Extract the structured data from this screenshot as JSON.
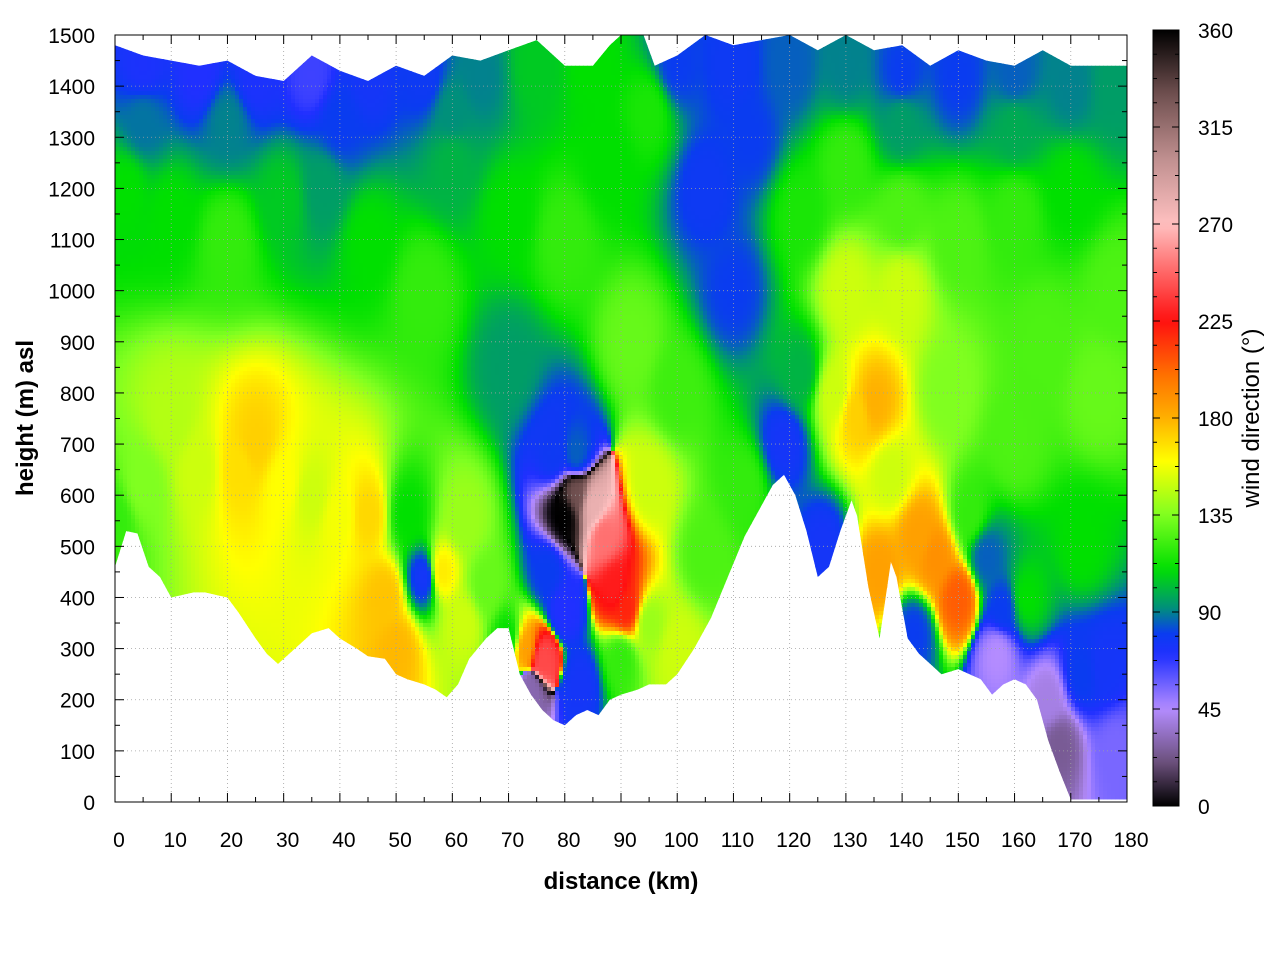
{
  "chart_data": {
    "type": "heatmap",
    "title": "",
    "xlabel": "distance (km)",
    "ylabel": "height (m) asl",
    "colorbar_label": "wind direction (°)",
    "xlim": [
      0,
      180
    ],
    "ylim": [
      0,
      1500
    ],
    "clim": [
      0,
      360
    ],
    "x_ticks": [
      0,
      10,
      20,
      30,
      40,
      50,
      60,
      70,
      80,
      90,
      100,
      110,
      120,
      130,
      140,
      150,
      160,
      170,
      180
    ],
    "y_ticks": [
      0,
      100,
      200,
      300,
      400,
      500,
      600,
      700,
      800,
      900,
      1000,
      1100,
      1200,
      1300,
      1400,
      1500
    ],
    "colorbar_ticks": [
      0,
      45,
      90,
      135,
      180,
      225,
      270,
      315,
      360
    ],
    "grid": true,
    "colormap": [
      {
        "v": 0,
        "c": "#000000"
      },
      {
        "v": 20,
        "c": "#6a4f7a"
      },
      {
        "v": 45,
        "c": "#b48cff"
      },
      {
        "v": 70,
        "c": "#2030ff"
      },
      {
        "v": 80,
        "c": "#0a3cf0"
      },
      {
        "v": 92,
        "c": "#00907a"
      },
      {
        "v": 110,
        "c": "#00e000"
      },
      {
        "v": 135,
        "c": "#80ff20"
      },
      {
        "v": 160,
        "c": "#ffff00"
      },
      {
        "v": 180,
        "c": "#ffb000"
      },
      {
        "v": 200,
        "c": "#ff7000"
      },
      {
        "v": 225,
        "c": "#ff1010"
      },
      {
        "v": 250,
        "c": "#ff7070"
      },
      {
        "v": 270,
        "c": "#ffc0c0"
      },
      {
        "v": 300,
        "c": "#c09090"
      },
      {
        "v": 330,
        "c": "#705050"
      },
      {
        "v": 360,
        "c": "#000000"
      }
    ],
    "terrain_profile": {
      "x": [
        0,
        2,
        4,
        6,
        8,
        10,
        12,
        14,
        16,
        20,
        22,
        25,
        27,
        29,
        30,
        32,
        35,
        38,
        40,
        43,
        45,
        48,
        50,
        52,
        55,
        57,
        59,
        61,
        63,
        66,
        68,
        70,
        72,
        74,
        76,
        78,
        80,
        82,
        84,
        86,
        88,
        90,
        93,
        95,
        98,
        100,
        103,
        106,
        109,
        112,
        115,
        117,
        119,
        121,
        123,
        125,
        127,
        129,
        131,
        132,
        134,
        136,
        138,
        139,
        141,
        143,
        145,
        147,
        150,
        152,
        154,
        156,
        158,
        160,
        162,
        164,
        166,
        168,
        170,
        172,
        174,
        176,
        178,
        180
      ],
      "height_m": [
        460,
        530,
        525,
        460,
        440,
        400,
        405,
        410,
        410,
        400,
        370,
        320,
        290,
        270,
        280,
        300,
        330,
        340,
        320,
        300,
        285,
        280,
        250,
        240,
        230,
        220,
        205,
        230,
        280,
        320,
        340,
        340,
        250,
        210,
        180,
        160,
        150,
        170,
        180,
        170,
        200,
        210,
        220,
        230,
        230,
        250,
        300,
        360,
        440,
        520,
        580,
        620,
        640,
        600,
        530,
        440,
        460,
        530,
        590,
        560,
        420,
        320,
        470,
        440,
        320,
        290,
        270,
        250,
        260,
        250,
        240,
        210,
        230,
        240,
        230,
        200,
        120,
        60,
        5,
        5,
        5,
        5,
        5,
        5
      ]
    },
    "top_edge": {
      "x": [
        0,
        5,
        10,
        15,
        20,
        25,
        30,
        35,
        40,
        45,
        50,
        55,
        60,
        65,
        70,
        75,
        80,
        85,
        88,
        90,
        92,
        94,
        96,
        100,
        105,
        110,
        115,
        120,
        125,
        130,
        135,
        140,
        145,
        150,
        155,
        160,
        165,
        170,
        175,
        180
      ],
      "height_m": [
        1480,
        1460,
        1450,
        1440,
        1450,
        1420,
        1410,
        1460,
        1430,
        1410,
        1440,
        1420,
        1460,
        1450,
        1470,
        1490,
        1440,
        1440,
        1480,
        1500,
        1500,
        1500,
        1440,
        1460,
        1500,
        1480,
        1490,
        1500,
        1470,
        1500,
        1470,
        1480,
        1440,
        1470,
        1450,
        1440,
        1470,
        1440,
        1440,
        1440
      ]
    },
    "features": [
      {
        "x": 0,
        "h": 550,
        "dir": 120
      },
      {
        "x": 5,
        "h": 620,
        "dir": 135
      },
      {
        "x": 10,
        "h": 750,
        "dir": 145
      },
      {
        "x": 15,
        "h": 650,
        "dir": 150
      },
      {
        "x": 22,
        "h": 650,
        "dir": 168
      },
      {
        "x": 25,
        "h": 700,
        "dir": 172
      },
      {
        "x": 30,
        "h": 620,
        "dir": 160
      },
      {
        "x": 35,
        "h": 600,
        "dir": 150
      },
      {
        "x": 40,
        "h": 560,
        "dir": 158
      },
      {
        "x": 45,
        "h": 560,
        "dir": 170
      },
      {
        "x": 48,
        "h": 400,
        "dir": 175
      },
      {
        "x": 50,
        "h": 300,
        "dir": 178
      },
      {
        "x": 52,
        "h": 560,
        "dir": 110
      },
      {
        "x": 55,
        "h": 440,
        "dir": 75
      },
      {
        "x": 58,
        "h": 450,
        "dir": 165
      },
      {
        "x": 62,
        "h": 550,
        "dir": 140
      },
      {
        "x": 62,
        "h": 350,
        "dir": 150
      },
      {
        "x": 66,
        "h": 420,
        "dir": 130
      },
      {
        "x": 70,
        "h": 320,
        "dir": 110
      },
      {
        "x": 73,
        "h": 300,
        "dir": 185
      },
      {
        "x": 76,
        "h": 280,
        "dir": 240
      },
      {
        "x": 74,
        "h": 220,
        "dir": 30
      },
      {
        "x": 77,
        "h": 450,
        "dir": 80
      },
      {
        "x": 70,
        "h": 850,
        "dir": 95
      },
      {
        "x": 78,
        "h": 680,
        "dir": 78
      },
      {
        "x": 82,
        "h": 680,
        "dir": 85
      },
      {
        "x": 80,
        "h": 560,
        "dir": 360
      },
      {
        "x": 82,
        "h": 600,
        "dir": 330
      },
      {
        "x": 85,
        "h": 580,
        "dir": 280
      },
      {
        "x": 87,
        "h": 520,
        "dir": 250
      },
      {
        "x": 89,
        "h": 420,
        "dir": 228
      },
      {
        "x": 91,
        "h": 380,
        "dir": 220
      },
      {
        "x": 80,
        "h": 380,
        "dir": 70
      },
      {
        "x": 83,
        "h": 230,
        "dir": 75
      },
      {
        "x": 90,
        "h": 280,
        "dir": 120
      },
      {
        "x": 95,
        "h": 350,
        "dir": 140
      },
      {
        "x": 95,
        "h": 620,
        "dir": 150
      },
      {
        "x": 100,
        "h": 300,
        "dir": 150
      },
      {
        "x": 92,
        "h": 900,
        "dir": 130
      },
      {
        "x": 100,
        "h": 800,
        "dir": 122
      },
      {
        "x": 105,
        "h": 1200,
        "dir": 78
      },
      {
        "x": 110,
        "h": 1000,
        "dir": 80
      },
      {
        "x": 113,
        "h": 1300,
        "dir": 80
      },
      {
        "x": 105,
        "h": 480,
        "dir": 125
      },
      {
        "x": 112,
        "h": 620,
        "dir": 120
      },
      {
        "x": 119,
        "h": 700,
        "dir": 75
      },
      {
        "x": 122,
        "h": 840,
        "dir": 100
      },
      {
        "x": 126,
        "h": 500,
        "dir": 75
      },
      {
        "x": 128,
        "h": 800,
        "dir": 150
      },
      {
        "x": 130,
        "h": 1000,
        "dir": 150
      },
      {
        "x": 132,
        "h": 760,
        "dir": 172
      },
      {
        "x": 135,
        "h": 780,
        "dir": 180
      },
      {
        "x": 136,
        "h": 450,
        "dir": 185
      },
      {
        "x": 138,
        "h": 640,
        "dir": 150
      },
      {
        "x": 140,
        "h": 1000,
        "dir": 150
      },
      {
        "x": 143,
        "h": 520,
        "dir": 185
      },
      {
        "x": 146,
        "h": 480,
        "dir": 190
      },
      {
        "x": 150,
        "h": 400,
        "dir": 205
      },
      {
        "x": 142,
        "h": 330,
        "dir": 80
      },
      {
        "x": 148,
        "h": 800,
        "dir": 135
      },
      {
        "x": 152,
        "h": 560,
        "dir": 120
      },
      {
        "x": 155,
        "h": 480,
        "dir": 85
      },
      {
        "x": 158,
        "h": 380,
        "dir": 80
      },
      {
        "x": 157,
        "h": 290,
        "dir": 45
      },
      {
        "x": 162,
        "h": 400,
        "dir": 110
      },
      {
        "x": 160,
        "h": 700,
        "dir": 125
      },
      {
        "x": 165,
        "h": 900,
        "dir": 125
      },
      {
        "x": 166,
        "h": 200,
        "dir": 40
      },
      {
        "x": 168,
        "h": 110,
        "dir": 25
      },
      {
        "x": 172,
        "h": 250,
        "dir": 80
      },
      {
        "x": 176,
        "h": 260,
        "dir": 75
      },
      {
        "x": 178,
        "h": 100,
        "dir": 55
      },
      {
        "x": 172,
        "h": 500,
        "dir": 110
      },
      {
        "x": 175,
        "h": 800,
        "dir": 130
      },
      {
        "x": 2,
        "h": 1200,
        "dir": 110
      },
      {
        "x": 10,
        "h": 1150,
        "dir": 110
      },
      {
        "x": 20,
        "h": 1100,
        "dir": 120
      },
      {
        "x": 30,
        "h": 1180,
        "dir": 105
      },
      {
        "x": 37,
        "h": 1200,
        "dir": 95
      },
      {
        "x": 45,
        "h": 1100,
        "dir": 110
      },
      {
        "x": 55,
        "h": 1000,
        "dir": 120
      },
      {
        "x": 60,
        "h": 1250,
        "dir": 100
      },
      {
        "x": 70,
        "h": 1150,
        "dir": 110
      },
      {
        "x": 80,
        "h": 1100,
        "dir": 120
      },
      {
        "x": 88,
        "h": 1250,
        "dir": 110
      },
      {
        "x": 95,
        "h": 1350,
        "dir": 115
      },
      {
        "x": 122,
        "h": 1150,
        "dir": 115
      },
      {
        "x": 130,
        "h": 1250,
        "dir": 120
      },
      {
        "x": 140,
        "h": 1150,
        "dir": 125
      },
      {
        "x": 150,
        "h": 1100,
        "dir": 125
      },
      {
        "x": 160,
        "h": 1150,
        "dir": 120
      },
      {
        "x": 170,
        "h": 1200,
        "dir": 110
      },
      {
        "x": 178,
        "h": 1000,
        "dir": 125
      },
      {
        "x": 5,
        "h": 1440,
        "dir": 72
      },
      {
        "x": 15,
        "h": 1430,
        "dir": 70
      },
      {
        "x": 25,
        "h": 1420,
        "dir": 72
      },
      {
        "x": 35,
        "h": 1420,
        "dir": 65
      },
      {
        "x": 45,
        "h": 1420,
        "dir": 75
      },
      {
        "x": 55,
        "h": 1420,
        "dir": 78
      },
      {
        "x": 65,
        "h": 1420,
        "dir": 90
      },
      {
        "x": 75,
        "h": 1440,
        "dir": 105
      },
      {
        "x": 85,
        "h": 1440,
        "dir": 110
      },
      {
        "x": 100,
        "h": 1440,
        "dir": 80
      },
      {
        "x": 110,
        "h": 1440,
        "dir": 78
      },
      {
        "x": 120,
        "h": 1440,
        "dir": 85
      },
      {
        "x": 130,
        "h": 1440,
        "dir": 90
      },
      {
        "x": 140,
        "h": 1420,
        "dir": 80
      },
      {
        "x": 150,
        "h": 1420,
        "dir": 80
      },
      {
        "x": 160,
        "h": 1420,
        "dir": 85
      },
      {
        "x": 170,
        "h": 1400,
        "dir": 90
      },
      {
        "x": 178,
        "h": 1400,
        "dir": 95
      },
      {
        "x": 5,
        "h": 1330,
        "dir": 88
      },
      {
        "x": 20,
        "h": 1330,
        "dir": 90
      },
      {
        "x": 40,
        "h": 1330,
        "dir": 80
      },
      {
        "x": 60,
        "h": 1350,
        "dir": 92
      },
      {
        "x": 140,
        "h": 1330,
        "dir": 95
      },
      {
        "x": 160,
        "h": 1320,
        "dir": 98
      }
    ]
  }
}
